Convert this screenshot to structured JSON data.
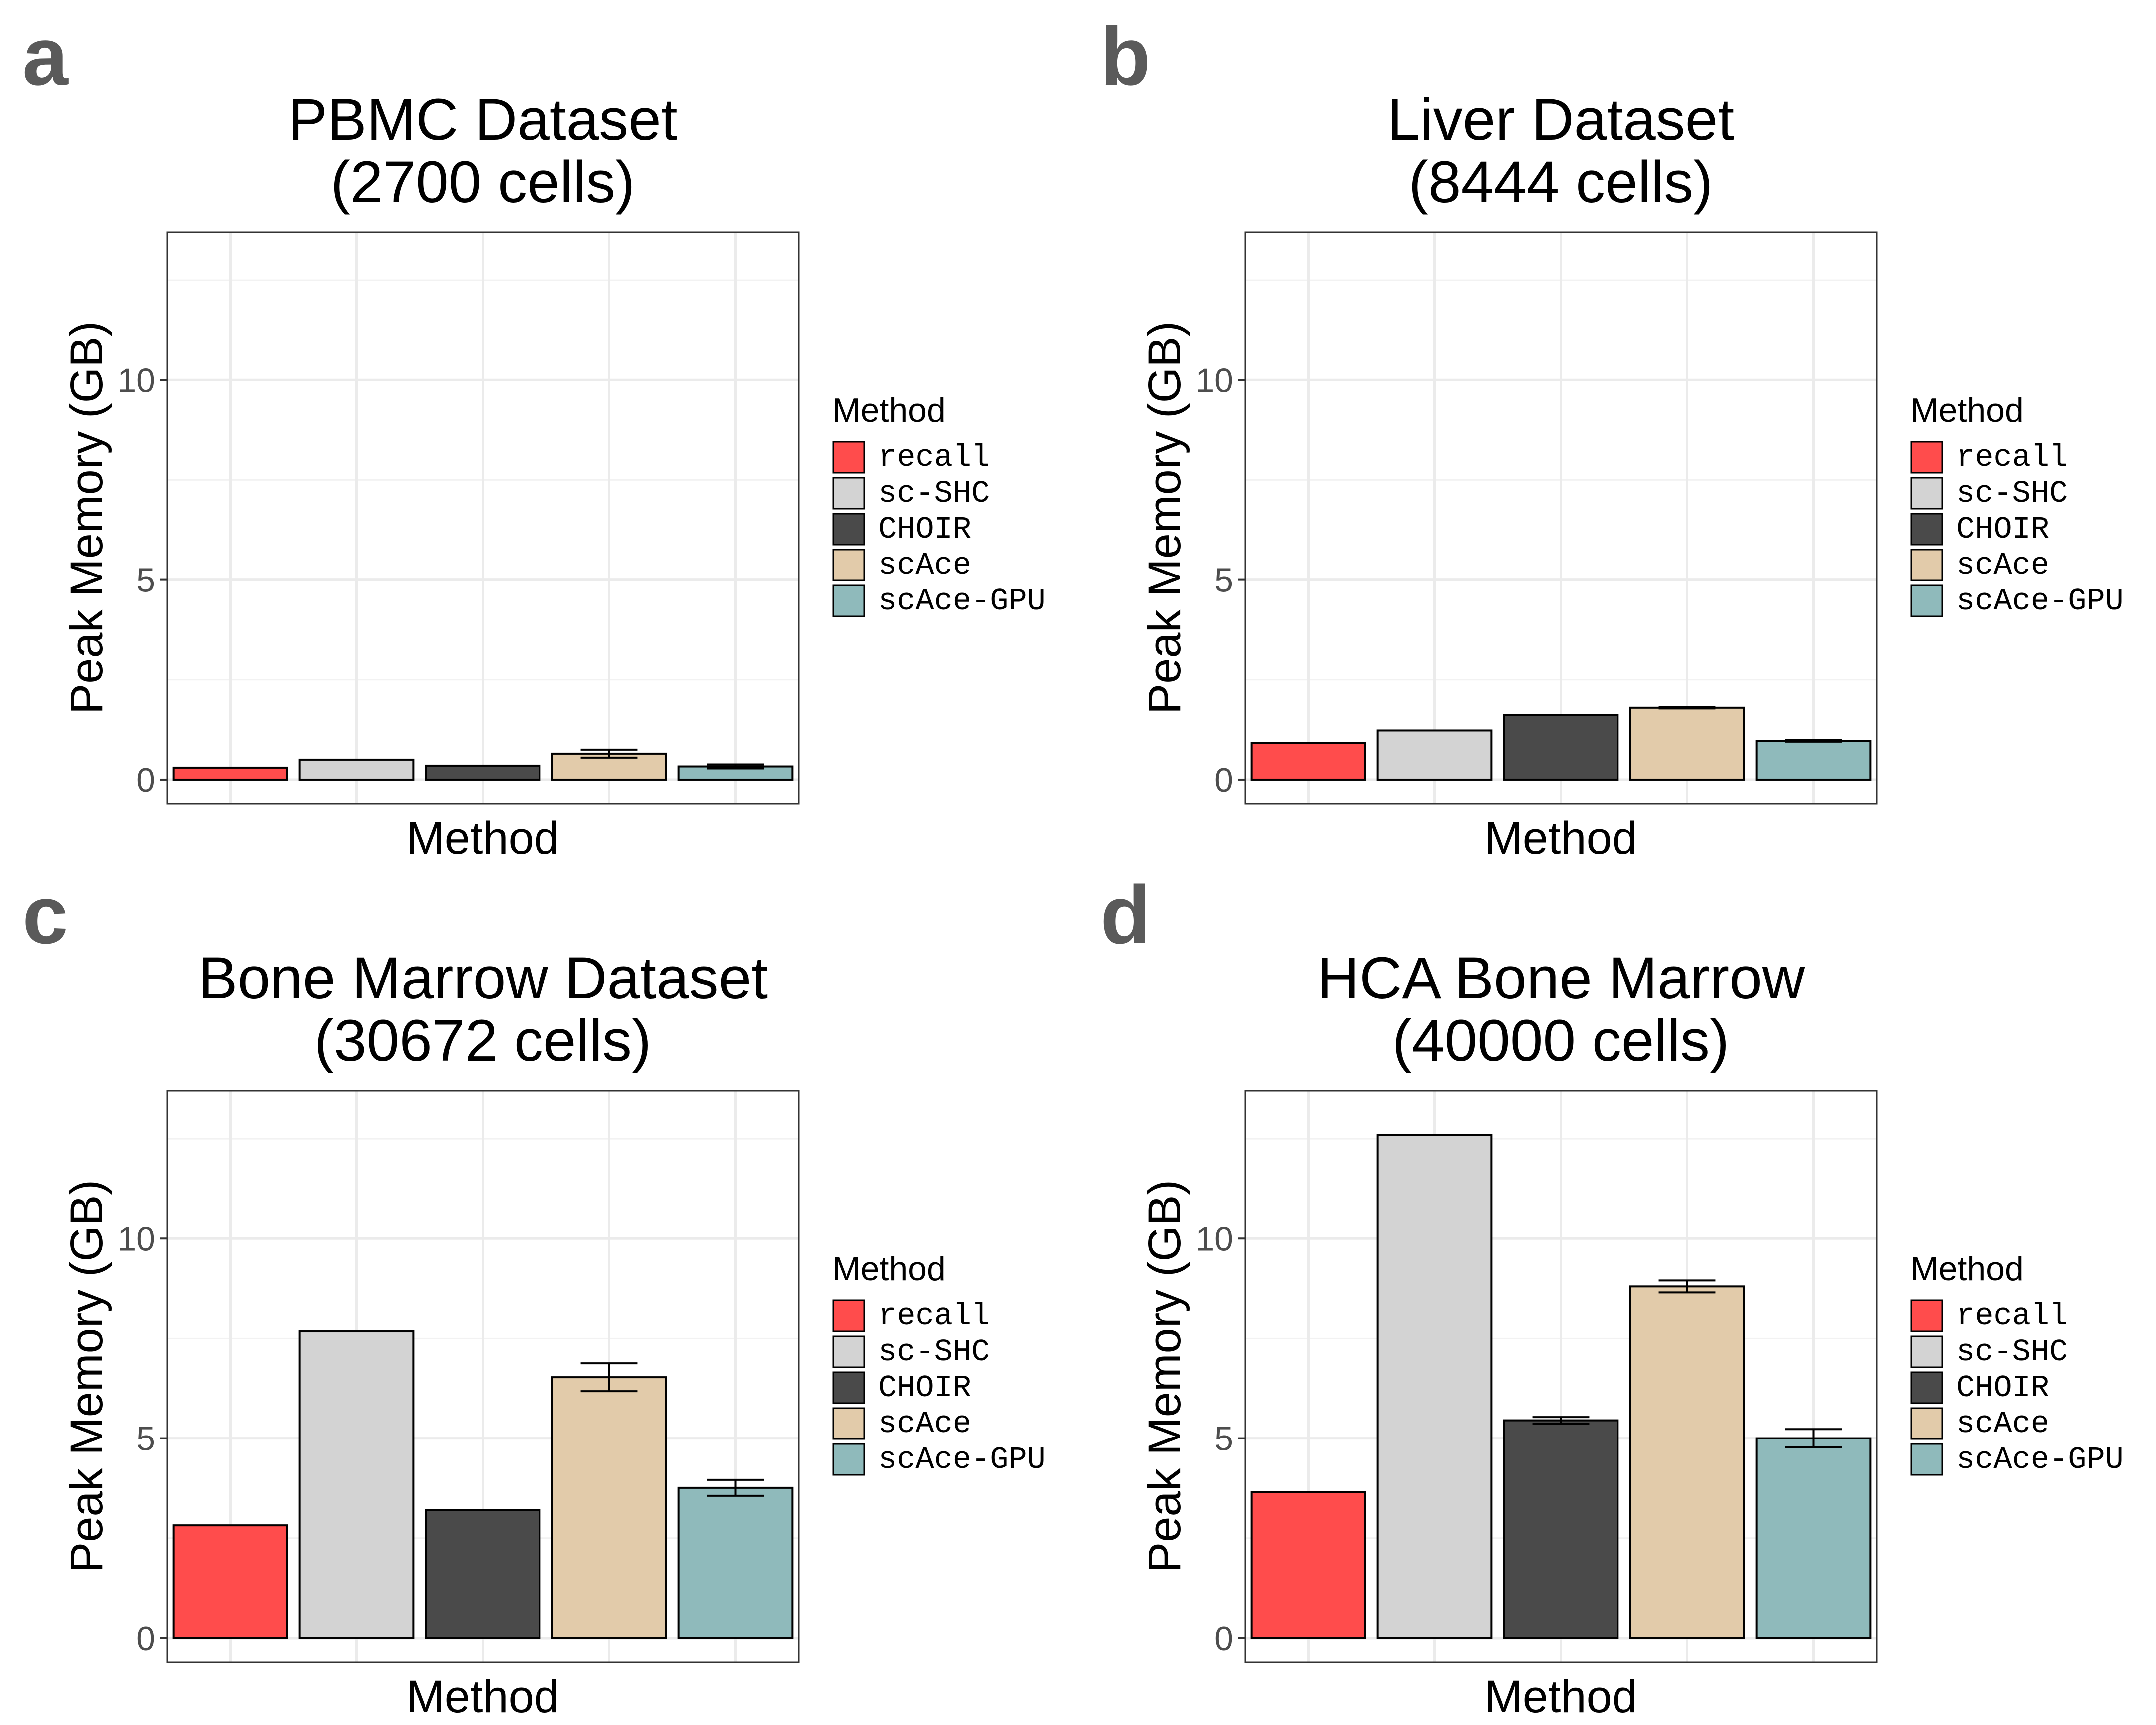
{
  "figure": {
    "legend": {
      "title": "Method",
      "entries": [
        {
          "label": "recall",
          "color": "#FF4C4C"
        },
        {
          "label": "sc-SHC",
          "color": "#D3D3D3"
        },
        {
          "label": "CHOIR",
          "color": "#4A4A4A"
        },
        {
          "label": "scAce",
          "color": "#E2CBAA"
        },
        {
          "label": "scAce-GPU",
          "color": "#8FBABB"
        }
      ]
    }
  },
  "chart_data": [
    {
      "type": "bar",
      "panel": "a",
      "title": [
        "PBMC Dataset",
        "(2700 cells)"
      ],
      "xlabel": "Method",
      "ylabel": "Peak Memory (GB)",
      "ylim": [
        -0.6,
        13.7
      ],
      "yticks": [
        0,
        5,
        10
      ],
      "grid": true,
      "legend_position": "right",
      "categories": [
        "recall",
        "sc-SHC",
        "CHOIR",
        "scAce",
        "scAce-GPU"
      ],
      "values": [
        0.3,
        0.5,
        0.35,
        0.65,
        0.33
      ],
      "errors": [
        null,
        null,
        null,
        0.1,
        0.05
      ]
    },
    {
      "type": "bar",
      "panel": "b",
      "title": [
        "Liver Dataset",
        "(8444 cells)"
      ],
      "xlabel": "Method",
      "ylabel": "Peak Memory (GB)",
      "ylim": [
        -0.6,
        13.7
      ],
      "yticks": [
        0,
        5,
        10
      ],
      "grid": true,
      "legend_position": "right",
      "categories": [
        "recall",
        "sc-SHC",
        "CHOIR",
        "scAce",
        "scAce-GPU"
      ],
      "values": [
        0.92,
        1.23,
        1.62,
        1.8,
        0.97
      ],
      "errors": [
        null,
        null,
        null,
        0.02,
        0.02
      ]
    },
    {
      "type": "bar",
      "panel": "c",
      "title": [
        "Bone Marrow Dataset",
        "(30672 cells)"
      ],
      "xlabel": "Method",
      "ylabel": "Peak Memory (GB)",
      "ylim": [
        -0.6,
        13.7
      ],
      "yticks": [
        0,
        5,
        10
      ],
      "grid": true,
      "legend_position": "right",
      "categories": [
        "recall",
        "sc-SHC",
        "CHOIR",
        "scAce",
        "scAce-GPU"
      ],
      "values": [
        2.82,
        7.68,
        3.2,
        6.53,
        3.76
      ],
      "errors": [
        null,
        null,
        null,
        0.35,
        0.2
      ]
    },
    {
      "type": "bar",
      "panel": "d",
      "title": [
        "HCA Bone Marrow",
        "(40000 cells)"
      ],
      "xlabel": "Method",
      "ylabel": "Peak Memory (GB)",
      "ylim": [
        -0.6,
        13.7
      ],
      "yticks": [
        0,
        5,
        10
      ],
      "grid": true,
      "legend_position": "right",
      "categories": [
        "recall",
        "sc-SHC",
        "CHOIR",
        "scAce",
        "scAce-GPU"
      ],
      "values": [
        3.65,
        12.6,
        5.45,
        8.8,
        5.0
      ],
      "errors": [
        null,
        null,
        0.08,
        0.15,
        0.23
      ]
    }
  ]
}
